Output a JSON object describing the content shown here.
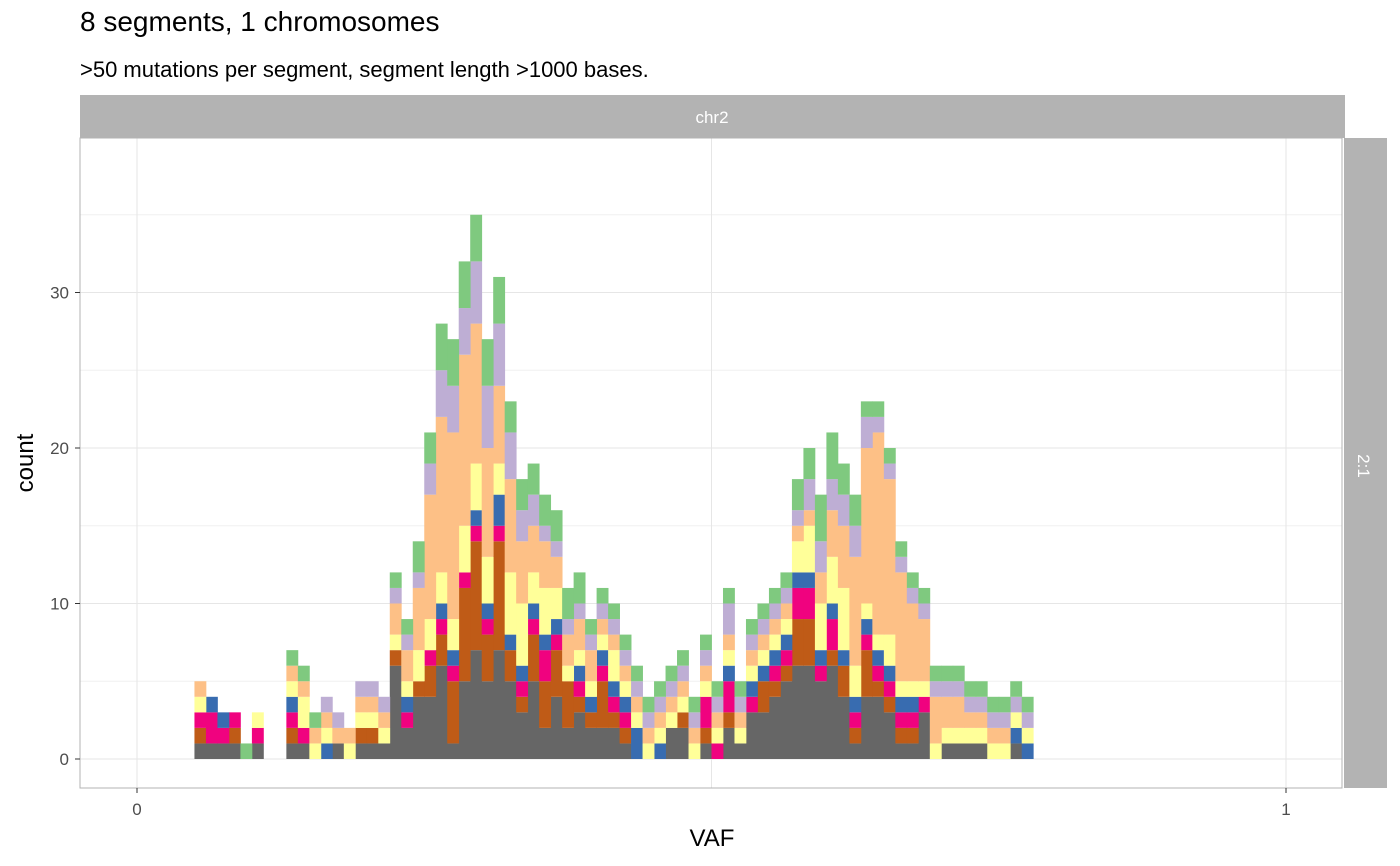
{
  "title": "8 segments, 1 chromosomes",
  "subtitle": ">50 mutations per segment, segment length >1000 bases.",
  "chart_data": {
    "type": "bar",
    "stacked": true,
    "facet_column_strip": "chr2",
    "facet_row_strip": "2:1",
    "xlabel": "VAF",
    "ylabel": "count",
    "xlim": [
      0,
      1
    ],
    "ylim": [
      0,
      38
    ],
    "x_ticks": [
      "0",
      "1"
    ],
    "y_ticks": [
      "0",
      "10",
      "20",
      "30"
    ],
    "bin_width": 0.01,
    "grid": true,
    "legend": "none",
    "series": [
      {
        "color": "#666666",
        "x": [
          0.05,
          0.06,
          0.07,
          0.08,
          0.1,
          0.13,
          0.14,
          0.17,
          0.19,
          0.2,
          0.21,
          0.22,
          0.23,
          0.24,
          0.25,
          0.26,
          0.27,
          0.28,
          0.29,
          0.3,
          0.31,
          0.32,
          0.33,
          0.34,
          0.35,
          0.36,
          0.37,
          0.38,
          0.39,
          0.4,
          0.41,
          0.42,
          0.46,
          0.47,
          0.49,
          0.51,
          0.52,
          0.53,
          0.54,
          0.55,
          0.56,
          0.57,
          0.58,
          0.59,
          0.6,
          0.61,
          0.62,
          0.63,
          0.64,
          0.65,
          0.66,
          0.67,
          0.68,
          0.7,
          0.71,
          0.72,
          0.73,
          0.76
        ],
        "values": [
          1,
          1,
          1,
          1,
          1,
          1,
          1,
          1,
          1,
          1,
          1,
          6,
          2,
          4,
          4,
          6,
          1,
          5,
          7,
          5,
          7,
          5,
          3,
          5,
          2,
          4,
          2,
          3,
          2,
          2,
          2,
          1,
          2,
          2,
          1,
          2,
          1,
          3,
          3,
          4,
          5,
          6,
          6,
          5,
          6,
          4,
          1,
          4,
          4,
          3,
          1,
          1,
          3,
          1,
          1,
          1,
          1,
          1
        ]
      },
      {
        "color": "#BF5B17",
        "x": [
          0.05,
          0.08,
          0.13,
          0.19,
          0.2,
          0.22,
          0.24,
          0.25,
          0.26,
          0.27,
          0.28,
          0.29,
          0.3,
          0.31,
          0.32,
          0.33,
          0.34,
          0.35,
          0.36,
          0.37,
          0.38,
          0.39,
          0.4,
          0.41,
          0.42,
          0.47,
          0.49,
          0.51,
          0.54,
          0.55,
          0.56,
          0.57,
          0.58,
          0.6,
          0.61,
          0.62,
          0.63,
          0.64,
          0.65,
          0.66,
          0.67
        ],
        "values": [
          1,
          1,
          1,
          1,
          1,
          1,
          1,
          2,
          2,
          4,
          6,
          7,
          3,
          7,
          2,
          1,
          3,
          3,
          3,
          3,
          1,
          1,
          3,
          1,
          1,
          1,
          1,
          1,
          2,
          1,
          1,
          3,
          3,
          1,
          2,
          1,
          3,
          1,
          1,
          1,
          1
        ]
      },
      {
        "color": "#F0027F",
        "x": [
          0.05,
          0.06,
          0.07,
          0.08,
          0.1,
          0.13,
          0.14,
          0.23,
          0.25,
          0.26,
          0.27,
          0.28,
          0.29,
          0.3,
          0.31,
          0.33,
          0.34,
          0.35,
          0.36,
          0.38,
          0.4,
          0.41,
          0.42,
          0.49,
          0.5,
          0.51,
          0.53,
          0.55,
          0.56,
          0.57,
          0.58,
          0.59,
          0.6,
          0.62,
          0.63,
          0.64,
          0.65,
          0.66,
          0.67,
          0.68
        ],
        "values": [
          1,
          2,
          1,
          1,
          1,
          1,
          1,
          1,
          1,
          1,
          1,
          1,
          1,
          1,
          1,
          1,
          1,
          2,
          1,
          1,
          1,
          1,
          1,
          2,
          1,
          2,
          1,
          1,
          1,
          2,
          2,
          1,
          2,
          1,
          1,
          1,
          1,
          1,
          1,
          1
        ]
      },
      {
        "color": "#386CB0",
        "x": [
          0.06,
          0.07,
          0.13,
          0.16,
          0.23,
          0.26,
          0.27,
          0.29,
          0.3,
          0.31,
          0.32,
          0.33,
          0.34,
          0.35,
          0.36,
          0.38,
          0.39,
          0.4,
          0.41,
          0.42,
          0.43,
          0.45,
          0.51,
          0.53,
          0.54,
          0.55,
          0.56,
          0.57,
          0.58,
          0.59,
          0.6,
          0.61,
          0.62,
          0.63,
          0.64,
          0.65,
          0.66,
          0.67,
          0.76,
          0.77
        ],
        "values": [
          1,
          1,
          1,
          1,
          1,
          1,
          1,
          1,
          1,
          2,
          1,
          1,
          1,
          1,
          1,
          1,
          1,
          1,
          1,
          1,
          2,
          1,
          1,
          1,
          1,
          1,
          1,
          1,
          1,
          1,
          1,
          1,
          1,
          1,
          1,
          1,
          1,
          1,
          1,
          1
        ]
      },
      {
        "color": "#FFFF99",
        "x": [
          0.05,
          0.1,
          0.13,
          0.14,
          0.15,
          0.16,
          0.18,
          0.19,
          0.2,
          0.21,
          0.22,
          0.23,
          0.24,
          0.25,
          0.26,
          0.27,
          0.28,
          0.29,
          0.3,
          0.31,
          0.32,
          0.33,
          0.34,
          0.35,
          0.36,
          0.37,
          0.38,
          0.39,
          0.4,
          0.41,
          0.42,
          0.43,
          0.44,
          0.45,
          0.46,
          0.47,
          0.48,
          0.49,
          0.5,
          0.51,
          0.52,
          0.53,
          0.54,
          0.55,
          0.56,
          0.57,
          0.58,
          0.59,
          0.6,
          0.61,
          0.62,
          0.63,
          0.64,
          0.65,
          0.66,
          0.67,
          0.68,
          0.69,
          0.7,
          0.71,
          0.72,
          0.73,
          0.74,
          0.75,
          0.76,
          0.77
        ],
        "values": [
          1,
          1,
          1,
          2,
          1,
          1,
          1,
          1,
          1,
          1,
          1,
          1,
          2,
          2,
          2,
          2,
          3,
          3,
          3,
          2,
          4,
          4,
          2,
          3,
          2,
          1,
          1,
          1,
          1,
          2,
          1,
          1,
          1,
          1,
          1,
          1,
          1,
          1,
          1,
          1,
          1,
          1,
          1,
          1,
          1,
          2,
          3,
          3,
          3,
          4,
          2,
          1,
          1,
          2,
          1,
          1,
          1,
          1,
          1,
          1,
          1,
          1,
          1,
          1,
          1,
          1
        ]
      },
      {
        "color": "#FDC086",
        "x": [
          0.05,
          0.13,
          0.14,
          0.15,
          0.16,
          0.17,
          0.18,
          0.19,
          0.2,
          0.21,
          0.22,
          0.23,
          0.24,
          0.25,
          0.26,
          0.27,
          0.28,
          0.29,
          0.3,
          0.31,
          0.32,
          0.33,
          0.34,
          0.35,
          0.36,
          0.37,
          0.38,
          0.39,
          0.4,
          0.41,
          0.42,
          0.43,
          0.44,
          0.45,
          0.46,
          0.47,
          0.48,
          0.49,
          0.5,
          0.51,
          0.52,
          0.53,
          0.54,
          0.55,
          0.56,
          0.57,
          0.58,
          0.59,
          0.6,
          0.61,
          0.62,
          0.63,
          0.64,
          0.65,
          0.66,
          0.67,
          0.68,
          0.69,
          0.7,
          0.71,
          0.72,
          0.73,
          0.74,
          0.75
        ],
        "values": [
          1,
          1,
          1,
          1,
          1,
          1,
          1,
          1,
          1,
          1,
          2,
          2,
          4,
          8,
          10,
          12,
          11,
          9,
          7,
          5,
          6,
          4,
          3,
          3,
          2,
          2,
          2,
          2,
          1,
          1,
          1,
          1,
          1,
          1,
          1,
          1,
          1,
          1,
          1,
          1,
          1,
          1,
          1,
          1,
          1,
          1,
          1,
          2,
          3,
          4,
          7,
          10,
          13,
          10,
          7,
          5,
          4,
          3,
          2,
          2,
          1,
          1,
          1,
          1
        ]
      },
      {
        "color": "#BEAED4",
        "x": [
          0.16,
          0.17,
          0.19,
          0.2,
          0.21,
          0.22,
          0.23,
          0.24,
          0.25,
          0.26,
          0.27,
          0.28,
          0.29,
          0.3,
          0.31,
          0.32,
          0.33,
          0.34,
          0.35,
          0.36,
          0.37,
          0.38,
          0.39,
          0.4,
          0.41,
          0.42,
          0.43,
          0.44,
          0.45,
          0.46,
          0.47,
          0.48,
          0.49,
          0.5,
          0.51,
          0.52,
          0.53,
          0.54,
          0.55,
          0.56,
          0.57,
          0.58,
          0.59,
          0.6,
          0.61,
          0.62,
          0.63,
          0.64,
          0.65,
          0.66,
          0.67,
          0.68,
          0.69,
          0.7,
          0.71,
          0.72,
          0.73,
          0.74,
          0.75,
          0.76,
          0.77
        ],
        "values": [
          1,
          1,
          1,
          1,
          1,
          1,
          1,
          1,
          2,
          3,
          3,
          3,
          4,
          4,
          4,
          3,
          2,
          2,
          1,
          1,
          1,
          1,
          1,
          1,
          1,
          1,
          1,
          1,
          1,
          1,
          1,
          1,
          1,
          1,
          2,
          1,
          1,
          1,
          1,
          1,
          1,
          2,
          2,
          2,
          2,
          2,
          2,
          1,
          1,
          1,
          1,
          1,
          1,
          1,
          1,
          1,
          1,
          1,
          1,
          1,
          1
        ]
      },
      {
        "color": "#7FC97F",
        "x": [
          0.09,
          0.13,
          0.14,
          0.15,
          0.22,
          0.23,
          0.24,
          0.25,
          0.26,
          0.27,
          0.28,
          0.29,
          0.3,
          0.31,
          0.32,
          0.33,
          0.34,
          0.35,
          0.36,
          0.37,
          0.38,
          0.39,
          0.4,
          0.41,
          0.42,
          0.43,
          0.44,
          0.45,
          0.46,
          0.47,
          0.48,
          0.49,
          0.5,
          0.51,
          0.52,
          0.53,
          0.54,
          0.55,
          0.56,
          0.57,
          0.58,
          0.59,
          0.6,
          0.61,
          0.62,
          0.63,
          0.64,
          0.65,
          0.66,
          0.67,
          0.68,
          0.69,
          0.7,
          0.71,
          0.72,
          0.73,
          0.74,
          0.75,
          0.76,
          0.77
        ],
        "values": [
          1,
          1,
          1,
          1,
          1,
          1,
          2,
          2,
          3,
          3,
          3,
          3,
          3,
          3,
          2,
          2,
          2,
          2,
          2,
          2,
          2,
          1,
          1,
          1,
          1,
          1,
          1,
          1,
          1,
          1,
          1,
          1,
          1,
          1,
          1,
          1,
          1,
          1,
          1,
          2,
          2,
          3,
          3,
          2,
          2,
          1,
          1,
          1,
          1,
          1,
          1,
          1,
          1,
          1,
          1,
          1,
          1,
          1,
          1,
          1
        ]
      }
    ]
  }
}
